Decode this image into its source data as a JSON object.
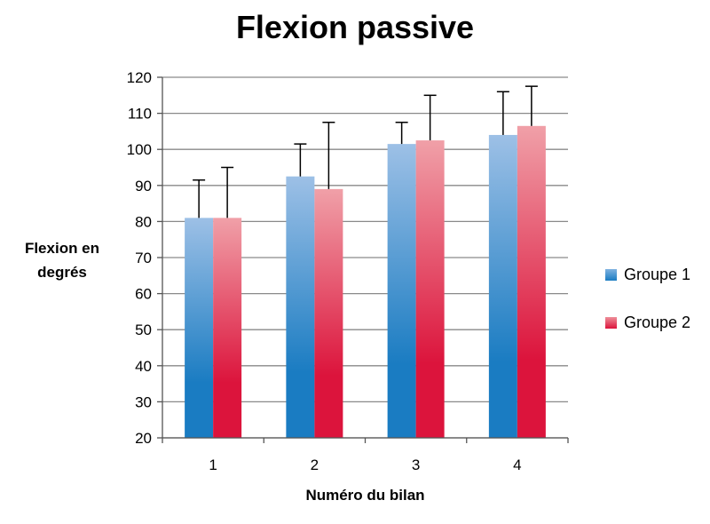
{
  "chart_data": {
    "type": "bar",
    "title": "Flexion passive",
    "xlabel": "Numéro du bilan",
    "ylabel_lines": [
      "Flexion en",
      "degrés"
    ],
    "categories": [
      "1",
      "2",
      "3",
      "4"
    ],
    "series": [
      {
        "name": "Groupe 1",
        "values": [
          81,
          92.5,
          101.5,
          104
        ],
        "error": [
          10.5,
          9,
          6,
          12
        ],
        "color": "#1a7cc2",
        "color_light": "#9dc0e6"
      },
      {
        "name": "Groupe 2",
        "values": [
          81,
          89,
          102.5,
          106.5
        ],
        "error": [
          14,
          18.5,
          12.5,
          11
        ],
        "color": "#dc143c",
        "color_light": "#f0a0a8"
      }
    ],
    "ylim": [
      20,
      120
    ],
    "yticks": [
      "20",
      "30",
      "40",
      "50",
      "60",
      "70",
      "80",
      "90",
      "100",
      "110",
      "120"
    ],
    "grid": true,
    "legend_position": "right",
    "error_bars": "upper"
  }
}
